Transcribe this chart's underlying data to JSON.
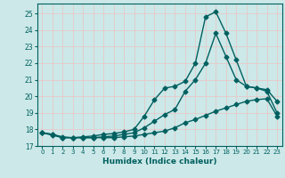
{
  "title": "",
  "xlabel": "Humidex (Indice chaleur)",
  "ylabel": "",
  "bg_color": "#cce8e8",
  "grid_color": "#e8c8c8",
  "line_color": "#006060",
  "xlim": [
    -0.5,
    23.5
  ],
  "ylim": [
    17.0,
    25.6
  ],
  "yticks": [
    17,
    18,
    19,
    20,
    21,
    22,
    23,
    24,
    25
  ],
  "xticks": [
    0,
    1,
    2,
    3,
    4,
    5,
    6,
    7,
    8,
    9,
    10,
    11,
    12,
    13,
    14,
    15,
    16,
    17,
    18,
    19,
    20,
    21,
    22,
    23
  ],
  "line1_x": [
    0,
    1,
    2,
    3,
    4,
    5,
    6,
    7,
    8,
    9,
    10,
    11,
    12,
    13,
    14,
    15,
    16,
    17,
    18,
    19,
    20,
    21,
    22,
    23
  ],
  "line1_y": [
    17.8,
    17.7,
    17.55,
    17.5,
    17.55,
    17.6,
    17.7,
    17.75,
    17.85,
    18.0,
    18.8,
    19.8,
    20.5,
    20.6,
    20.9,
    22.0,
    24.8,
    25.1,
    23.8,
    22.2,
    20.6,
    20.5,
    20.4,
    19.7
  ],
  "line2_x": [
    0,
    1,
    2,
    3,
    4,
    5,
    6,
    7,
    8,
    9,
    10,
    11,
    12,
    13,
    14,
    15,
    16,
    17,
    18,
    19,
    20,
    21,
    22,
    23
  ],
  "line2_y": [
    17.8,
    17.7,
    17.5,
    17.5,
    17.5,
    17.5,
    17.55,
    17.6,
    17.7,
    17.8,
    18.1,
    18.5,
    18.9,
    19.2,
    20.3,
    21.0,
    22.0,
    23.8,
    22.4,
    21.0,
    20.6,
    20.5,
    20.3,
    19.0
  ],
  "line3_x": [
    0,
    1,
    2,
    3,
    4,
    5,
    6,
    7,
    8,
    9,
    10,
    11,
    12,
    13,
    14,
    15,
    16,
    17,
    18,
    19,
    20,
    21,
    22,
    23
  ],
  "line3_y": [
    17.8,
    17.65,
    17.5,
    17.5,
    17.5,
    17.5,
    17.5,
    17.5,
    17.55,
    17.6,
    17.7,
    17.8,
    17.9,
    18.1,
    18.4,
    18.6,
    18.85,
    19.1,
    19.3,
    19.5,
    19.7,
    19.8,
    19.85,
    18.8
  ],
  "marker_size": 2.5,
  "line_width": 1.0
}
